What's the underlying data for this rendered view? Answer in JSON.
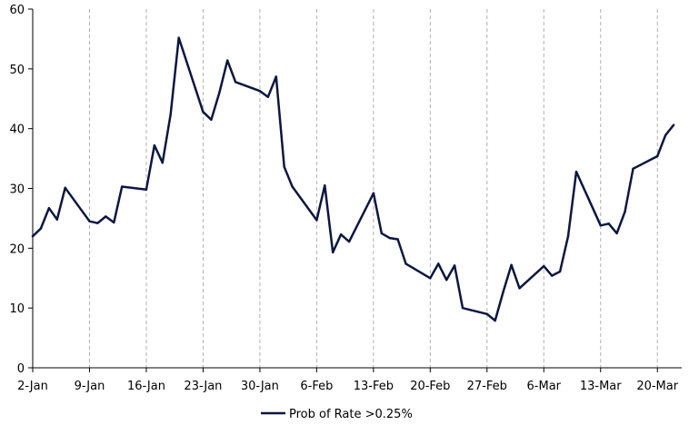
{
  "chart_data": {
    "type": "line",
    "title": "",
    "xlabel": "",
    "ylabel": "",
    "ylim": [
      0,
      60
    ],
    "xlim_days": [
      0,
      80
    ],
    "yticks": [
      0,
      10,
      20,
      30,
      40,
      50,
      60
    ],
    "xtick_labels": [
      "2-Jan",
      "9-Jan",
      "16-Jan",
      "23-Jan",
      "30-Jan",
      "6-Feb",
      "13-Feb",
      "20-Feb",
      "27-Feb",
      "6-Mar",
      "13-Mar",
      "20-Mar"
    ],
    "grid": "vertical dashed",
    "legend_position": "bottom-center",
    "colors": {
      "series": "#0d1640",
      "grid": "#b0b0b0",
      "axis": "#000000"
    },
    "series": [
      {
        "name": "Prob of Rate >0.25%",
        "x": [
          "2-Jan",
          "3-Jan",
          "4-Jan",
          "5-Jan",
          "6-Jan",
          "9-Jan",
          "10-Jan",
          "11-Jan",
          "12-Jan",
          "13-Jan",
          "16-Jan",
          "17-Jan",
          "18-Jan",
          "19-Jan",
          "20-Jan",
          "23-Jan",
          "24-Jan",
          "25-Jan",
          "26-Jan",
          "27-Jan",
          "30-Jan",
          "31-Jan",
          "1-Feb",
          "2-Feb",
          "3-Feb",
          "6-Feb",
          "7-Feb",
          "8-Feb",
          "9-Feb",
          "10-Feb",
          "13-Feb",
          "14-Feb",
          "15-Feb",
          "16-Feb",
          "17-Feb",
          "20-Feb",
          "21-Feb",
          "22-Feb",
          "23-Feb",
          "24-Feb",
          "27-Feb",
          "28-Feb",
          "1-Mar",
          "2-Mar",
          "3-Mar",
          "6-Mar",
          "7-Mar",
          "8-Mar",
          "9-Mar",
          "10-Mar",
          "13-Mar",
          "14-Mar",
          "15-Mar",
          "16-Mar",
          "17-Mar",
          "20-Mar",
          "21-Mar",
          "22-Mar"
        ],
        "values": [
          22.0,
          23.3,
          26.7,
          24.8,
          30.1,
          24.5,
          24.2,
          25.3,
          24.3,
          30.3,
          29.8,
          37.2,
          34.3,
          42.4,
          55.2,
          42.8,
          41.5,
          46.0,
          51.4,
          47.8,
          46.3,
          45.3,
          48.7,
          33.6,
          30.3,
          24.7,
          30.5,
          19.3,
          22.3,
          21.1,
          29.2,
          22.5,
          21.7,
          21.5,
          17.4,
          15.0,
          17.4,
          14.7,
          17.1,
          10.0,
          9.0,
          7.9,
          12.7,
          17.2,
          13.3,
          17.0,
          15.4,
          16.1,
          22.0,
          32.8,
          23.8,
          24.1,
          22.5,
          26.1,
          33.3,
          35.4,
          38.9,
          40.6
        ]
      }
    ]
  }
}
